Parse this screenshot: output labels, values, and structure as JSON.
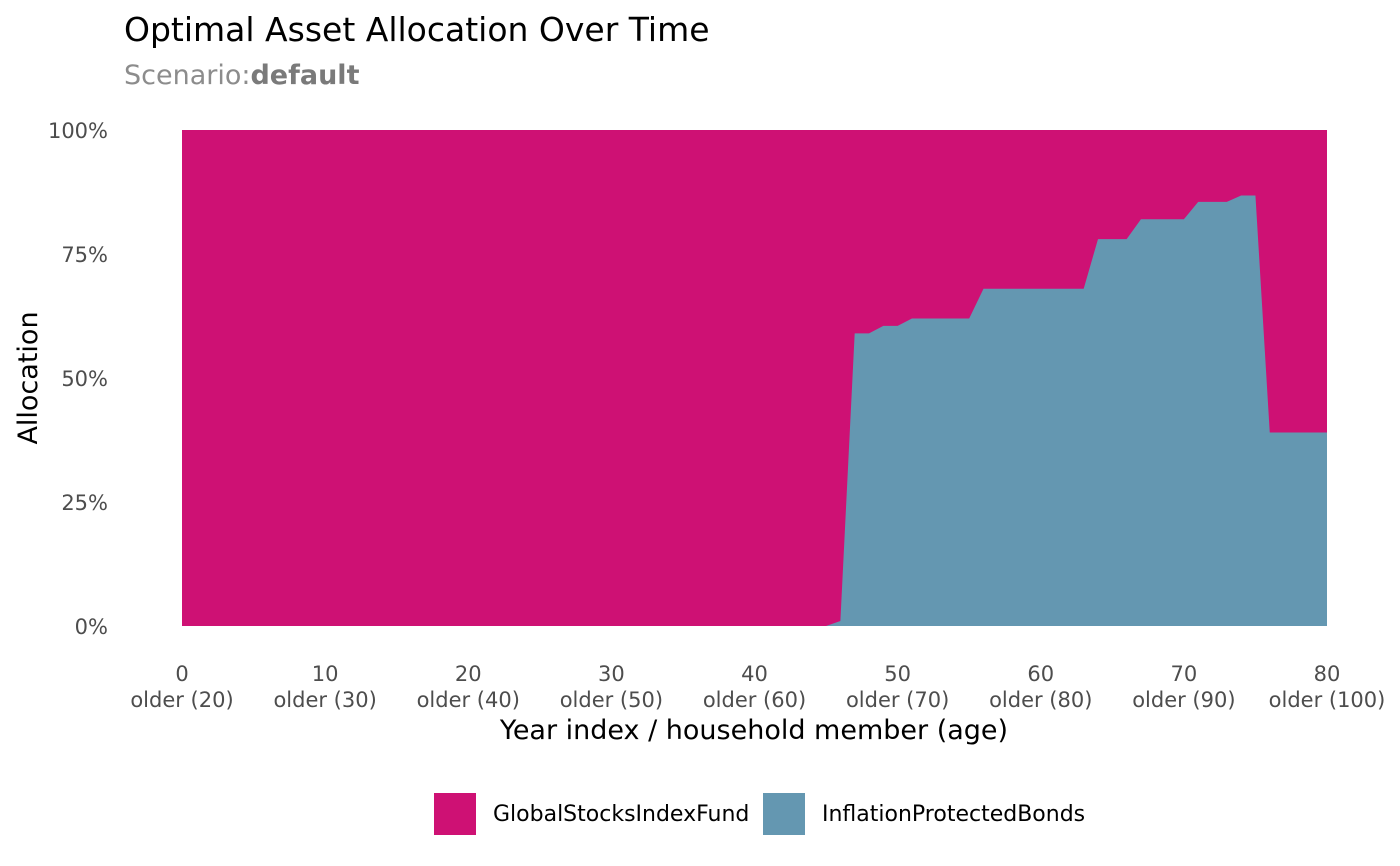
{
  "chart_data": {
    "type": "area",
    "stacked": "percent",
    "title": "Optimal Asset Allocation Over Time",
    "subtitle_prefix": "Scenario:",
    "subtitle_value": "default",
    "xlabel": "Year index / household member (age)",
    "ylabel": "Allocation",
    "xlim": [
      0,
      80
    ],
    "ylim": [
      0,
      100
    ],
    "x_ticks": [
      {
        "value": 0,
        "label": "0",
        "sublabel": "older (20)"
      },
      {
        "value": 10,
        "label": "10",
        "sublabel": "older (30)"
      },
      {
        "value": 20,
        "label": "20",
        "sublabel": "older (40)"
      },
      {
        "value": 30,
        "label": "30",
        "sublabel": "older (50)"
      },
      {
        "value": 40,
        "label": "40",
        "sublabel": "older (60)"
      },
      {
        "value": 50,
        "label": "50",
        "sublabel": "older (70)"
      },
      {
        "value": 60,
        "label": "60",
        "sublabel": "older (80)"
      },
      {
        "value": 70,
        "label": "70",
        "sublabel": "older (90)"
      },
      {
        "value": 80,
        "label": "80",
        "sublabel": "older (100)"
      }
    ],
    "y_ticks": [
      {
        "value": 0,
        "label": "0%"
      },
      {
        "value": 25,
        "label": "25%"
      },
      {
        "value": 50,
        "label": "50%"
      },
      {
        "value": 75,
        "label": "75%"
      },
      {
        "value": 100,
        "label": "100%"
      }
    ],
    "grid": false,
    "legend_position": "bottom",
    "series": [
      {
        "name": "GlobalStocksIndexFund",
        "color": "#CE1174"
      },
      {
        "name": "InflationProtectedBonds",
        "color": "#6497B1"
      }
    ],
    "bonds_share": {
      "x": [
        0,
        44,
        45,
        46,
        47,
        48,
        49,
        50,
        51,
        52,
        53,
        54,
        55,
        56,
        57,
        58,
        59,
        60,
        61,
        62,
        63,
        64,
        65,
        66,
        67,
        68,
        69,
        70,
        71,
        72,
        73,
        74,
        75,
        76,
        77,
        78,
        79,
        80
      ],
      "y": [
        0,
        0,
        0,
        1,
        59,
        59,
        60.5,
        60.5,
        62,
        62,
        62,
        62,
        62,
        68,
        68,
        68,
        68,
        68,
        68,
        68,
        68,
        78,
        78,
        78,
        82,
        82,
        82,
        82,
        85.5,
        85.5,
        85.5,
        86.8,
        86.8,
        39,
        39,
        39,
        39,
        39
      ]
    },
    "stocks_share_note_free": true
  }
}
